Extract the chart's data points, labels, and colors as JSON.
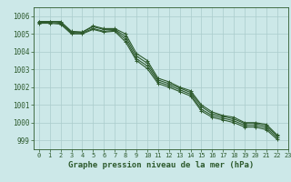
{
  "title": "Graphe pression niveau de la mer (hPa)",
  "background_color": "#cce8e8",
  "grid_color": "#aacccc",
  "line_color": "#2d5a2d",
  "xlim": [
    -0.5,
    23
  ],
  "ylim": [
    998.5,
    1006.5
  ],
  "yticks": [
    999,
    1000,
    1001,
    1002,
    1003,
    1004,
    1005,
    1006
  ],
  "xticks": [
    0,
    1,
    2,
    3,
    4,
    5,
    6,
    7,
    8,
    9,
    10,
    11,
    12,
    13,
    14,
    15,
    16,
    17,
    18,
    19,
    20,
    21,
    22,
    23
  ],
  "series": [
    [
      1005.7,
      1005.7,
      1005.7,
      1005.15,
      1005.1,
      1005.45,
      1005.3,
      1005.3,
      1005.0,
      1003.9,
      1003.5,
      1002.5,
      1002.3,
      1002.0,
      1001.8,
      1001.0,
      1000.6,
      1000.4,
      1000.3,
      1000.0,
      1000.0,
      999.9,
      999.3
    ],
    [
      1005.7,
      1005.7,
      1005.65,
      1005.1,
      1005.1,
      1005.4,
      1005.25,
      1005.25,
      1004.85,
      1003.75,
      1003.35,
      1002.4,
      1002.2,
      1001.95,
      1001.7,
      1000.9,
      1000.5,
      1000.35,
      1000.2,
      999.95,
      999.95,
      999.8,
      999.25
    ],
    [
      1005.65,
      1005.65,
      1005.6,
      1005.05,
      1005.05,
      1005.3,
      1005.15,
      1005.2,
      1004.7,
      1003.6,
      1003.2,
      1002.3,
      1002.1,
      1001.85,
      1001.6,
      1000.75,
      1000.4,
      1000.25,
      1000.1,
      999.85,
      999.85,
      999.7,
      999.15
    ],
    [
      1005.6,
      1005.6,
      1005.55,
      1005.0,
      1005.0,
      1005.25,
      1005.1,
      1005.15,
      1004.55,
      1003.5,
      1003.05,
      1002.2,
      1002.0,
      1001.75,
      1001.5,
      1000.65,
      1000.3,
      1000.15,
      1000.0,
      999.75,
      999.75,
      999.6,
      999.05
    ]
  ],
  "marker": "+",
  "marker_size": 3.5,
  "line_width": 0.8,
  "tick_fontsize": 5.5,
  "xlabel_fontsize": 6.5
}
